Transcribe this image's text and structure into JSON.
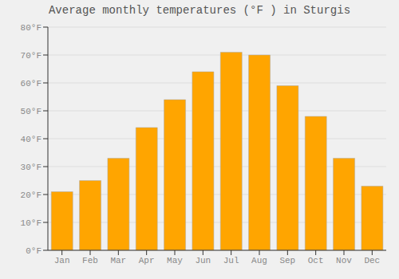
{
  "chart_data": {
    "type": "bar",
    "title": "Average monthly temperatures (°F ) in Sturgis",
    "categories": [
      "Jan",
      "Feb",
      "Mar",
      "Apr",
      "May",
      "Jun",
      "Jul",
      "Aug",
      "Sep",
      "Oct",
      "Nov",
      "Dec"
    ],
    "values": [
      21,
      25,
      33,
      44,
      54,
      64,
      71,
      70,
      59,
      48,
      33,
      23
    ],
    "color": "#FFA500",
    "ylim": [
      0,
      80
    ],
    "yticks": [
      {
        "value": 0,
        "label": "0°F"
      },
      {
        "value": 10,
        "label": "10°F"
      },
      {
        "value": 20,
        "label": "20°F"
      },
      {
        "value": 30,
        "label": "30°F"
      },
      {
        "value": 40,
        "label": "40°F"
      },
      {
        "value": 50,
        "label": "50°F"
      },
      {
        "value": 60,
        "label": "60°F"
      },
      {
        "value": 70,
        "label": "70°F"
      },
      {
        "value": 80,
        "label": "80°F"
      }
    ],
    "grid": true
  }
}
